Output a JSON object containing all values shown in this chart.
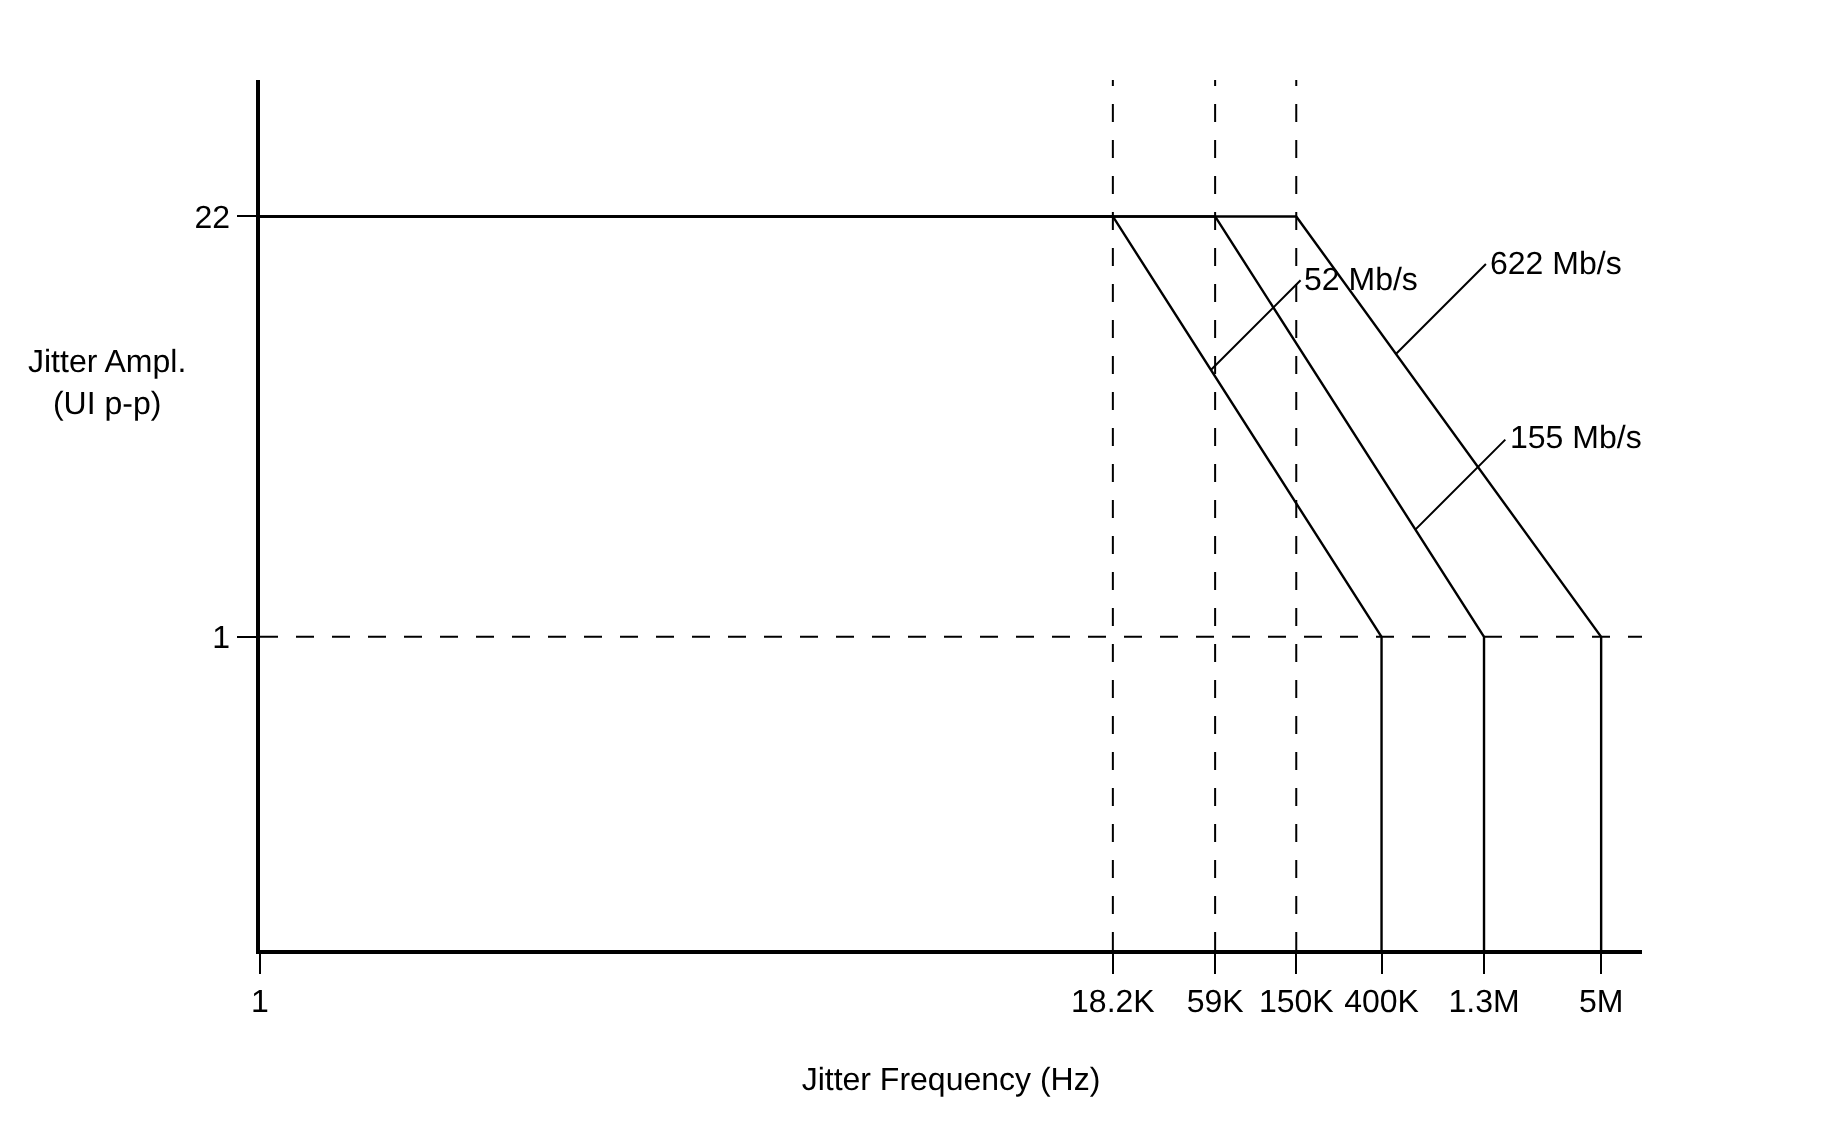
{
  "chart_data": {
    "type": "line",
    "xlabel": "Jitter Frequency (Hz)",
    "ylabel": "Jitter Ampl.\n(UI p-p)",
    "log": "xy",
    "marker": "none",
    "line_style": "solid",
    "xlim": [
      1,
      8000000
    ],
    "ylim": [
      0.1,
      60
    ],
    "xticks": [
      1,
      {
        "value": 18200,
        "label": "18.2K"
      },
      {
        "value": 59000,
        "label": "59K"
      },
      {
        "value": 150000,
        "label": "150K"
      },
      {
        "value": 400000,
        "label": "400K"
      },
      {
        "value": 1300000,
        "label": "1.3M"
      },
      {
        "value": 5000000,
        "label": "5M"
      }
    ],
    "yticks": [
      1,
      22
    ],
    "series": [
      {
        "color": "#000000",
        "x": [
          1,
          18200,
          400000,
          400000
        ],
        "values": [
          22,
          22,
          1,
          0.1
        ]
      },
      {
        "color": "#000000",
        "x": [
          1,
          59000,
          1300000,
          1300000
        ],
        "values": [
          22,
          22,
          1,
          0.1
        ]
      },
      {
        "color": "#000000",
        "x": [
          1,
          150000,
          5000000,
          5000000
        ],
        "values": [
          22,
          22,
          1,
          0.1
        ]
      }
    ],
    "annotations": [
      {
        "text": "52 Mb/s",
        "x": 56000,
        "y": 7.1
      },
      {
        "text": "155 Mb/s",
        "x": 590000,
        "y": 2.2
      },
      {
        "text": "622 Mb/s",
        "x": 472000,
        "y": 8
      }
    ],
    "ref_lines": [
      {
        "axis": "x",
        "value": 18200,
        "line_style": "dashed"
      },
      {
        "axis": "x",
        "value": 59000,
        "line_style": "dashed"
      },
      {
        "axis": "x",
        "value": 150000,
        "line_style": "dashed"
      },
      {
        "axis": "y",
        "value": 1,
        "line_style": "dashed"
      }
    ]
  }
}
